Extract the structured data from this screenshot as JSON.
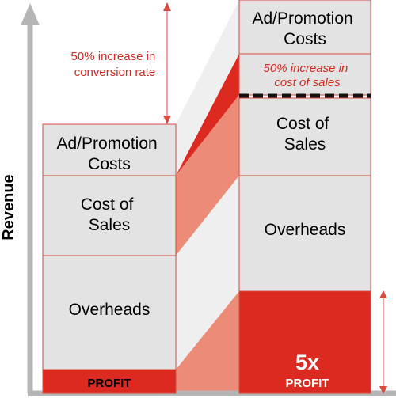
{
  "axis": {
    "y_label": "Revenue"
  },
  "left_column": {
    "ad_promotion": [
      "Ad/Promotion",
      "Costs"
    ],
    "cost_of_sales": [
      "Cost of",
      "Sales"
    ],
    "overheads": "Overheads",
    "profit": "PROFIT"
  },
  "right_column": {
    "ad_promotion": [
      "Ad/Promotion",
      "Costs"
    ],
    "cost_increase": [
      "50% increase in",
      "cost of sales"
    ],
    "cost_of_sales": [
      "Cost of",
      "Sales"
    ],
    "overheads": "Overheads",
    "multiplier": "5x",
    "profit": "PROFIT"
  },
  "annotations": {
    "conversion_increase": [
      "50% increase in",
      "conversion rate"
    ]
  },
  "colors": {
    "box_fill": "#e3e3e3",
    "box_border": "#d94a40",
    "profit_red": "#dd2a20",
    "band_salmon": "#ec8c78",
    "band_light": "#efefef",
    "axis_gray": "#b5b5b5",
    "dashed_line": "#111111"
  }
}
